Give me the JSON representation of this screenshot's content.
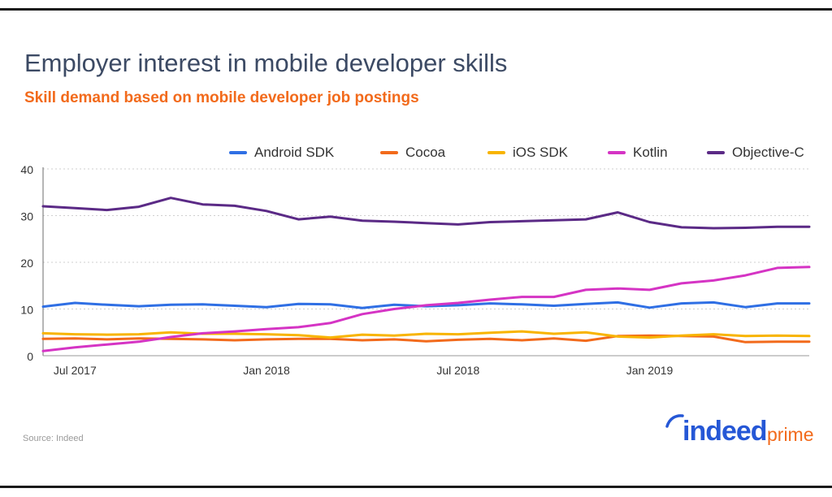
{
  "title": "Employer interest in mobile developer skills",
  "subtitle": "Skill demand based on mobile developer job postings",
  "source": "Source: Indeed",
  "logo": {
    "brand": "indeed",
    "suffix": "prime"
  },
  "colors": {
    "title": "#3c4a64",
    "subtitle": "#f26a1b",
    "brand_blue": "#2557d6",
    "brand_orange": "#f26a1b",
    "frame": "#1a1a1a"
  },
  "chart_data": {
    "type": "line",
    "title": "Employer interest in mobile developer skills",
    "subtitle": "Skill demand based on mobile developer job postings",
    "xlabel": "",
    "ylabel": "",
    "ylim": [
      0,
      40
    ],
    "yticks": [
      0,
      10,
      20,
      30,
      40
    ],
    "grid": "horizontal dotted",
    "legend_position": "top",
    "x": [
      "2017-06",
      "2017-07",
      "2017-08",
      "2017-09",
      "2017-10",
      "2017-11",
      "2017-12",
      "2018-01",
      "2018-02",
      "2018-03",
      "2018-04",
      "2018-05",
      "2018-06",
      "2018-07",
      "2018-08",
      "2018-09",
      "2018-10",
      "2018-11",
      "2018-12",
      "2019-01",
      "2019-02",
      "2019-03",
      "2019-04",
      "2019-05",
      "2019-06"
    ],
    "x_tick_labels": [
      {
        "x": "2017-07",
        "label": "Jul 2017"
      },
      {
        "x": "2018-01",
        "label": "Jan 2018"
      },
      {
        "x": "2018-07",
        "label": "Jul 2018"
      },
      {
        "x": "2019-01",
        "label": "Jan 2019"
      }
    ],
    "series": [
      {
        "name": "Android SDK",
        "color": "#2f6fe4",
        "values": [
          10.5,
          11.3,
          10.9,
          10.6,
          10.9,
          11.0,
          10.7,
          10.4,
          11.1,
          11.0,
          10.2,
          10.9,
          10.6,
          10.8,
          11.2,
          11.0,
          10.7,
          11.1,
          11.4,
          10.3,
          11.2,
          11.4,
          10.4,
          11.2,
          11.2
        ]
      },
      {
        "name": "Cocoa",
        "color": "#f26a1b",
        "values": [
          3.6,
          3.7,
          3.5,
          3.7,
          3.6,
          3.5,
          3.3,
          3.5,
          3.6,
          3.6,
          3.3,
          3.5,
          3.1,
          3.4,
          3.6,
          3.3,
          3.7,
          3.2,
          4.2,
          4.3,
          4.2,
          4.1,
          2.9,
          3.0,
          3.0
        ]
      },
      {
        "name": "iOS SDK",
        "color": "#f8b400",
        "values": [
          4.8,
          4.6,
          4.5,
          4.6,
          5.0,
          4.7,
          4.7,
          4.6,
          4.4,
          3.9,
          4.5,
          4.3,
          4.7,
          4.6,
          4.9,
          5.2,
          4.7,
          5.0,
          4.1,
          3.9,
          4.3,
          4.6,
          4.2,
          4.3,
          4.2
        ]
      },
      {
        "name": "Kotlin",
        "color": "#d534c4",
        "values": [
          1.0,
          1.8,
          2.4,
          3.0,
          4.0,
          4.8,
          5.2,
          5.7,
          6.1,
          7.0,
          8.9,
          10.0,
          10.8,
          11.3,
          12.0,
          12.6,
          12.6,
          14.1,
          14.4,
          14.1,
          15.5,
          16.1,
          17.2,
          18.8,
          19.0
        ]
      },
      {
        "name": "Objective-C",
        "color": "#5b2a86",
        "values": [
          32.0,
          31.6,
          31.2,
          31.9,
          33.8,
          32.4,
          32.1,
          31.0,
          29.2,
          29.8,
          28.9,
          28.7,
          28.4,
          28.1,
          28.6,
          28.8,
          29.0,
          29.2,
          30.7,
          28.6,
          27.5,
          27.3,
          27.4,
          27.6,
          27.6
        ]
      }
    ]
  }
}
